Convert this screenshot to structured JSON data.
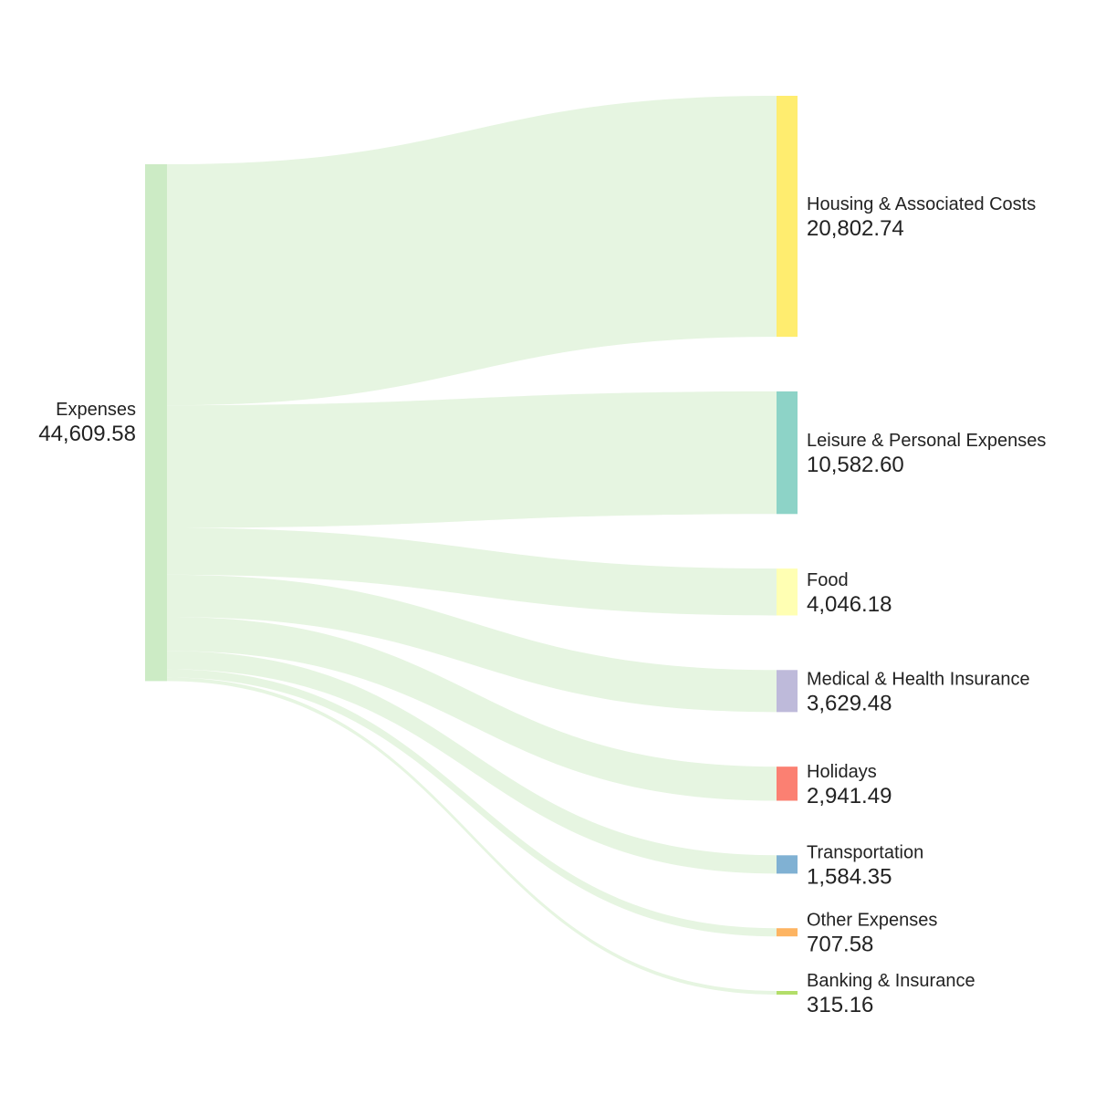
{
  "chart_data": {
    "type": "sankey",
    "title": "",
    "source": {
      "label": "Expenses",
      "value_text": "44,609.58",
      "value": 44609.58,
      "color": "#ccebc5"
    },
    "link_color": "#e6f5e1",
    "targets": [
      {
        "label": "Housing & Associated Costs",
        "value_text": "20,802.74",
        "value": 20802.74,
        "color": "#ffed6f"
      },
      {
        "label": "Leisure & Personal Expenses",
        "value_text": "10,582.60",
        "value": 10582.6,
        "color": "#8dd3c7"
      },
      {
        "label": "Food",
        "value_text": "4,046.18",
        "value": 4046.18,
        "color": "#ffffb3"
      },
      {
        "label": "Medical & Health Insurance",
        "value_text": "3,629.48",
        "value": 3629.48,
        "color": "#bebada"
      },
      {
        "label": "Holidays",
        "value_text": "2,941.49",
        "value": 2941.49,
        "color": "#fb8072"
      },
      {
        "label": "Transportation",
        "value_text": "1,584.35",
        "value": 1584.35,
        "color": "#80b1d3"
      },
      {
        "label": "Other Expenses",
        "value_text": "707.58",
        "value": 707.58,
        "color": "#fdb462"
      },
      {
        "label": "Banking & Insurance",
        "value_text": "315.16",
        "value": 315.16,
        "color": "#b3de69"
      }
    ]
  }
}
